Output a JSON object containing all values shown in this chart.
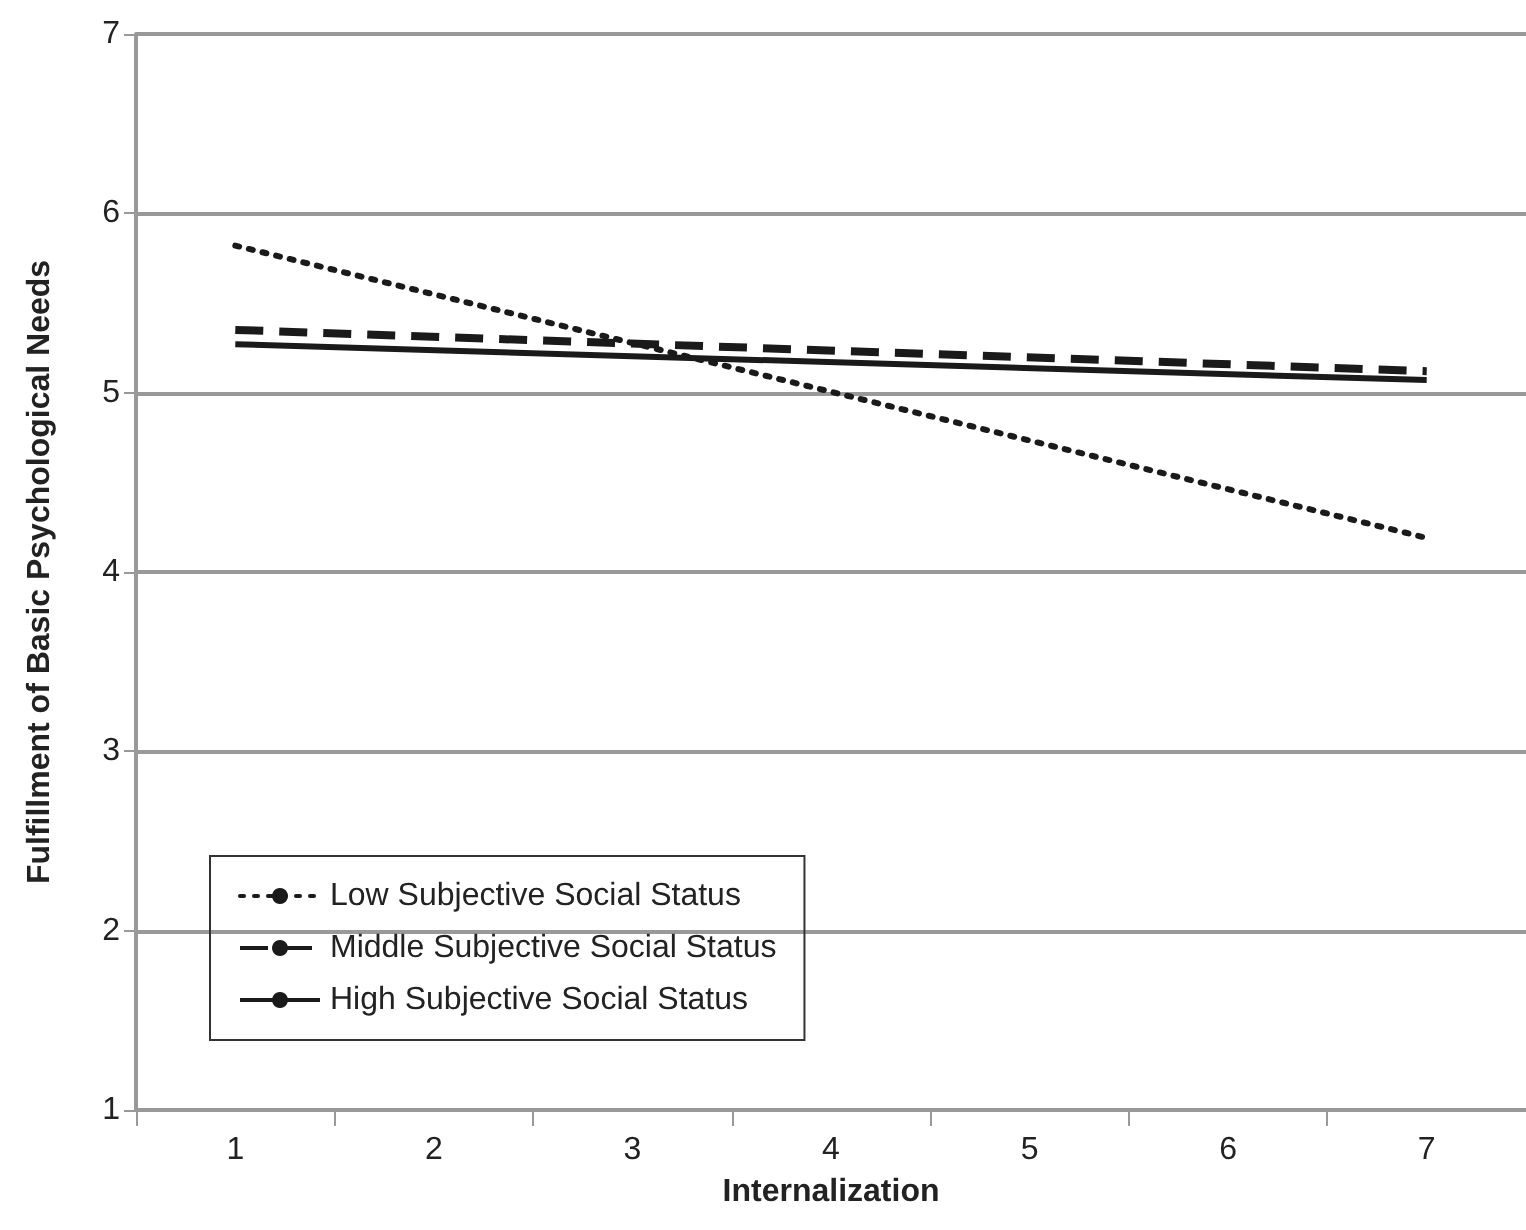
{
  "chart_data": {
    "type": "line",
    "xlabel": "Internalization",
    "ylabel": "Fulfillment of Basic Psychological Needs",
    "categories": [
      "1",
      "2",
      "3",
      "4",
      "5",
      "6",
      "7"
    ],
    "series": [
      {
        "name": "Low Subjective Social Status",
        "color": "#1a1a1a",
        "line_style": "dotted",
        "values": [
          5.82,
          null,
          null,
          null,
          null,
          null,
          4.19
        ]
      },
      {
        "name": "Middle Subjective Social Status",
        "color": "#1a1a1a",
        "line_style": "dashed",
        "values": [
          5.35,
          null,
          null,
          null,
          null,
          null,
          5.12
        ]
      },
      {
        "name": "High Subjective Social Status",
        "color": "#1a1a1a",
        "line_style": "solid",
        "values": [
          5.27,
          null,
          null,
          null,
          null,
          null,
          5.07
        ]
      }
    ],
    "ylim": [
      1,
      7
    ],
    "yticks": [
      1,
      2,
      3,
      4,
      5,
      6,
      7
    ],
    "grid": "y",
    "legend": "bottom left",
    "marker": "none"
  }
}
